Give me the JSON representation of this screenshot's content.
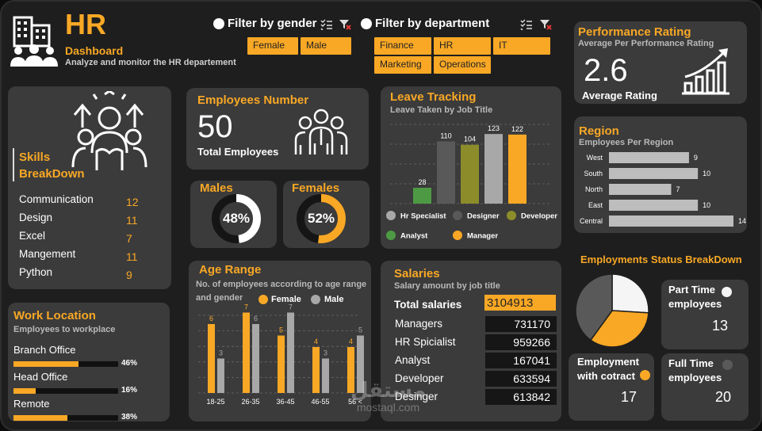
{
  "header": {
    "title": "HR",
    "subtitle": "Dashboard",
    "tagline": "Analyze and monitor the HR departement"
  },
  "filters": {
    "gender": {
      "label": "Filter by gender",
      "options": [
        "Female",
        "Male"
      ]
    },
    "department": {
      "label": "Filter by department",
      "options": [
        "Finance",
        "HR",
        "IT",
        "Marketing",
        "Operations"
      ]
    }
  },
  "performance": {
    "title": "Performance Rating",
    "subtitle": "Average Per Performance Rating",
    "value": "2.6",
    "label": "Average Rating"
  },
  "skills": {
    "title_line1": "Skills",
    "title_line2": "BreakDown",
    "items": [
      {
        "name": "Communication",
        "value": "12"
      },
      {
        "name": "Design",
        "value": "11"
      },
      {
        "name": "Excel",
        "value": "7"
      },
      {
        "name": "Mangement",
        "value": "11"
      },
      {
        "name": "Python",
        "value": "9"
      }
    ]
  },
  "employees": {
    "title": "Employees Number",
    "value": "50",
    "label": "Total Employees"
  },
  "gender_split": {
    "males": {
      "title": "Males",
      "value": "48%",
      "fraction": 0.48
    },
    "females": {
      "title": "Females",
      "value": "52%",
      "fraction": 0.52
    }
  },
  "work_location": {
    "title": "Work Location",
    "subtitle": "Employees to workplace",
    "items": [
      {
        "name": "Branch Office",
        "label": "46%",
        "fraction": 0.46
      },
      {
        "name": "Head Office",
        "label": "16%",
        "fraction": 0.16
      },
      {
        "name": "Remote",
        "label": "38%",
        "fraction": 0.38
      }
    ]
  },
  "salaries": {
    "title": "Salaries",
    "subtitle": "Salary amount by job title",
    "total_label": "Total salaries",
    "total_value": "3104913",
    "rows": [
      {
        "name": "Managers",
        "value": "731170"
      },
      {
        "name": "HR Spicialist",
        "value": "959266"
      },
      {
        "name": "Analyst",
        "value": "167041"
      },
      {
        "name": "Developer",
        "value": "633594"
      },
      {
        "name": "Desinger",
        "value": "613842"
      }
    ]
  },
  "status": {
    "title": "Employments Status BreakDown",
    "part_time": {
      "label_line1": "Part Time",
      "label_line2": "employees",
      "value": "13"
    },
    "contract": {
      "label_line1": "Employment",
      "label_line2": "with cotract",
      "value": "17"
    },
    "full_time": {
      "label_line1": "Full Time",
      "label_line2": "employees",
      "value": "20"
    }
  },
  "colors": {
    "accent": "#f9a825",
    "card": "#3b3b3b",
    "background": "#1e1e1e",
    "bar_gray": "#a8a8a8",
    "bar_dark": "#595959",
    "bar_olive": "#8c8c2a",
    "bar_green": "#4e9a44"
  },
  "watermark": {
    "arabic": "مستقل",
    "latin": "mostaql.com"
  },
  "chart_data": [
    {
      "id": "leave",
      "type": "bar",
      "title": "Leave Tracking",
      "subtitle": "Leave Taken by Job Title",
      "categories": [
        "Analyst",
        "Designer",
        "Developer",
        "Hr Specialist",
        "Manager"
      ],
      "values": [
        28,
        110,
        104,
        123,
        122
      ],
      "colors": [
        "#4e9a44",
        "#595959",
        "#8c8c2a",
        "#a8a8a8",
        "#f9a825"
      ],
      "legend": [
        {
          "name": "Hr Specialist",
          "color": "#a8a8a8"
        },
        {
          "name": "Designer",
          "color": "#595959"
        },
        {
          "name": "Developer",
          "color": "#8c8c2a"
        },
        {
          "name": "Analyst",
          "color": "#4e9a44"
        },
        {
          "name": "Manager",
          "color": "#f9a825"
        }
      ],
      "ylim": [
        0,
        140
      ],
      "legend_position": "bottom",
      "grid": true
    },
    {
      "id": "region",
      "type": "bar",
      "orientation": "horizontal",
      "title": "Region",
      "subtitle": "Employees Per Region",
      "categories": [
        "West",
        "South",
        "North",
        "East",
        "Central"
      ],
      "values": [
        9,
        10,
        7,
        10,
        14
      ],
      "xlim": [
        0,
        14
      ],
      "grid": false
    },
    {
      "id": "age",
      "type": "bar",
      "title": "Age Range",
      "subtitle_line1": "No. of employees according to age range",
      "subtitle_line2": "and gender",
      "categories": [
        "18-25",
        "26-35",
        "36-45",
        "46-55",
        "56 <"
      ],
      "series": [
        {
          "name": "Female",
          "values": [
            6,
            7,
            5,
            4,
            4
          ],
          "color": "#f9a825"
        },
        {
          "name": "Male",
          "values": [
            3,
            6,
            7,
            3,
            5
          ],
          "color": "#a8a8a8"
        }
      ],
      "ylim": [
        0,
        8
      ],
      "legend_position": "top",
      "grid": true
    },
    {
      "id": "status_pie",
      "type": "pie",
      "categories": [
        "Part Time",
        "Employment with cotract",
        "Full Time"
      ],
      "values": [
        13,
        17,
        20
      ],
      "colors": [
        "#f5f5f5",
        "#f9a825",
        "#595959"
      ]
    }
  ]
}
